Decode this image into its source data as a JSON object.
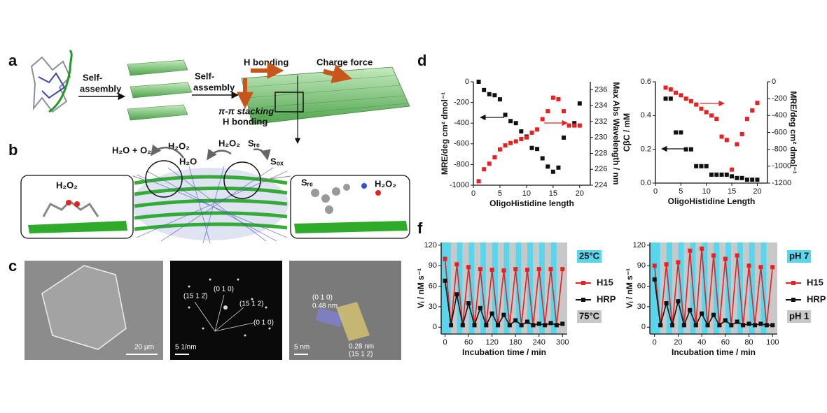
{
  "panel_a": {
    "letter": "a",
    "labels": [
      "Self-",
      "assembly",
      "Self-",
      "assembly",
      "H bonding",
      "Charge force",
      "π-π stacking",
      "H bonding"
    ]
  },
  "panel_b": {
    "letter": "b",
    "labels": [
      "H₂O + O₂",
      "H₂O₂",
      "H₂O",
      "H₂O₂",
      "Sᵣₑ",
      "Sₒₓ",
      "H₂O₂",
      "Sᵣₑ",
      "H₂O₂"
    ]
  },
  "panel_c": {
    "letter": "c",
    "labels": [
      "20 µm",
      "(0 1 0)",
      "(15 1 2̄)",
      "(15 1 2)",
      "(0 1 0)",
      "5 1/nm",
      "(0 1 0)",
      "0.48 nm",
      "0.28 nm",
      "(15 1 2)",
      "5 nm"
    ]
  },
  "panel_d": {
    "letter": "d"
  },
  "panel_f": {
    "letter": "f"
  },
  "chart_data": [
    {
      "type": "scatter",
      "xlabel": "OligoHistidine length",
      "ylabel": "MRE/deg cm² dmol⁻¹",
      "y2label": "Max Abs Wavelength / nm",
      "x": [
        1,
        2,
        3,
        4,
        5,
        6,
        7,
        8,
        9,
        10,
        11,
        12,
        13,
        14,
        15,
        16,
        17,
        18,
        19,
        20
      ],
      "series": [
        {
          "color": "#111111",
          "axis": "y",
          "values": [
            0,
            -80,
            -120,
            -130,
            -170,
            -320,
            -380,
            -400,
            -480,
            -530,
            -640,
            -650,
            -740,
            -820,
            -870,
            -830,
            -540,
            null,
            -400,
            -210
          ]
        },
        {
          "color": "#e8201f",
          "axis": "y2",
          "values": [
            224.5,
            226,
            226.7,
            227.5,
            228.5,
            229,
            229.3,
            229.5,
            229.8,
            230,
            230.6,
            231,
            232.3,
            233.3,
            235,
            234.8,
            233.3,
            231.5,
            231.5,
            231.5
          ]
        }
      ],
      "xlim": [
        0,
        22
      ],
      "xticks": [
        0,
        5,
        10,
        15,
        20
      ],
      "ylim": [
        -1000,
        0
      ],
      "yticks": [
        -1000,
        -800,
        -600,
        -400,
        -200,
        0
      ],
      "y2lim": [
        224,
        237
      ],
      "y2ticks": [
        224,
        226,
        228,
        230,
        232,
        234,
        236
      ]
    },
    {
      "type": "scatter",
      "xlabel": "OligoHistidine Length",
      "ylabel": "CβC / mM",
      "y2label": "MRE/deg cm² dmol⁻¹",
      "x": [
        2,
        3,
        4,
        5,
        6,
        7,
        8,
        9,
        10,
        11,
        12,
        13,
        14,
        15,
        16,
        17,
        18,
        19,
        20
      ],
      "series": [
        {
          "color": "#111111",
          "axis": "y",
          "values": [
            0.5,
            0.5,
            0.3,
            0.3,
            0.2,
            0.2,
            0.1,
            0.1,
            0.1,
            0.05,
            0.05,
            0.05,
            0.05,
            0.04,
            0.03,
            0.03,
            0.02,
            0.02,
            0.02
          ]
        },
        {
          "color": "#e8201f",
          "axis": "y2",
          "values": [
            -70,
            -90,
            -130,
            -160,
            -200,
            -230,
            -270,
            -320,
            -360,
            -400,
            -440,
            -650,
            -690,
            -1040,
            -740,
            -620,
            -440,
            -340,
            -250
          ]
        }
      ],
      "xlim": [
        0,
        22
      ],
      "xticks": [
        0,
        5,
        10,
        15,
        20
      ],
      "ylim": [
        0,
        0.6
      ],
      "yticks": [
        {
          "value": 0,
          "label": "0.0"
        },
        0.2,
        0.4,
        0.6
      ],
      "y2lim": [
        -1200,
        0
      ],
      "y2ticks": [
        -1200,
        -1000,
        -800,
        -600,
        -400,
        -200,
        0
      ]
    },
    {
      "type": "line",
      "xlabel": "Incubation time / min",
      "ylabel": "Vᵢ / nM s⁻¹",
      "x": [
        0,
        15,
        30,
        45,
        60,
        75,
        90,
        105,
        120,
        135,
        150,
        165,
        180,
        195,
        210,
        225,
        240,
        255,
        270,
        285,
        300
      ],
      "series": [
        {
          "name": "H15",
          "color": "#e8201f",
          "values": [
            100,
            3,
            92,
            3,
            88,
            3,
            85,
            3,
            84,
            3,
            83,
            3,
            85,
            3,
            84,
            3,
            85,
            3,
            85,
            3,
            85
          ]
        },
        {
          "name": "HRP",
          "color": "#111111",
          "values": [
            68,
            3,
            48,
            3,
            35,
            3,
            28,
            3,
            20,
            3,
            18,
            3,
            10,
            3,
            8,
            3,
            5,
            3,
            6,
            3,
            5
          ]
        }
      ],
      "xlim": [
        -10,
        312
      ],
      "xticks": [
        0,
        60,
        120,
        180,
        240,
        300
      ],
      "ylim": [
        -10,
        124
      ],
      "yticks": [
        0,
        30,
        60,
        90,
        120
      ],
      "bands": [
        "#5ad6ec",
        "#c8c8c8"
      ],
      "annotations": [
        "25°C",
        "75°C"
      ],
      "legend": "right"
    },
    {
      "type": "line",
      "xlabel": "Incubation time / min",
      "ylabel": "Vᵢ / nM s⁻¹",
      "x": [
        0,
        5,
        10,
        15,
        20,
        25,
        30,
        35,
        40,
        45,
        50,
        55,
        60,
        65,
        70,
        75,
        80,
        85,
        90,
        95,
        100
      ],
      "series": [
        {
          "name": "H15",
          "color": "#e8201f",
          "values": [
            90,
            3,
            92,
            3,
            95,
            3,
            112,
            3,
            115,
            3,
            105,
            3,
            100,
            3,
            105,
            3,
            90,
            3,
            88,
            3,
            88
          ]
        },
        {
          "name": "HRP",
          "color": "#111111",
          "values": [
            70,
            3,
            35,
            3,
            38,
            3,
            25,
            3,
            20,
            3,
            18,
            3,
            10,
            3,
            8,
            3,
            5,
            3,
            5,
            3,
            3
          ]
        }
      ],
      "xlim": [
        -4,
        104
      ],
      "xticks": [
        0,
        20,
        40,
        60,
        80,
        100
      ],
      "ylim": [
        -10,
        124
      ],
      "yticks": [
        0,
        30,
        60,
        90,
        120
      ],
      "bands": [
        "#5ad6ec",
        "#c8c8c8"
      ],
      "annotations": [
        "pH 7",
        "pH 1"
      ],
      "legend": "right"
    }
  ]
}
